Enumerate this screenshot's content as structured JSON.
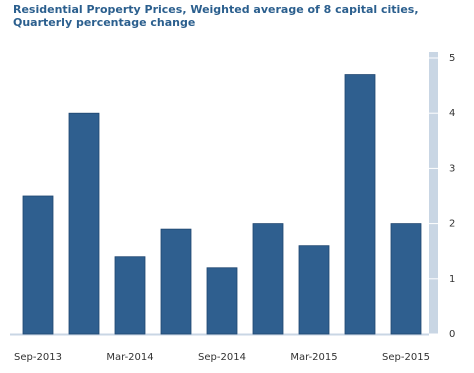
{
  "chart_data": {
    "type": "bar",
    "title": "Residential Property Prices, Weighted average of 8 capital cities, Quarterly percentage change",
    "categories": [
      "Sep-2013",
      null,
      "Mar-2014",
      null,
      "Sep-2014",
      null,
      "Mar-2015",
      null,
      "Sep-2015"
    ],
    "values": [
      2.5,
      4.0,
      1.4,
      1.9,
      1.2,
      2.0,
      1.6,
      4.7,
      2.0
    ],
    "color": "#2f5f8f",
    "ylim": [
      0,
      5
    ],
    "yticks": [
      0,
      1,
      2,
      3,
      4,
      5
    ],
    "grid": false
  }
}
